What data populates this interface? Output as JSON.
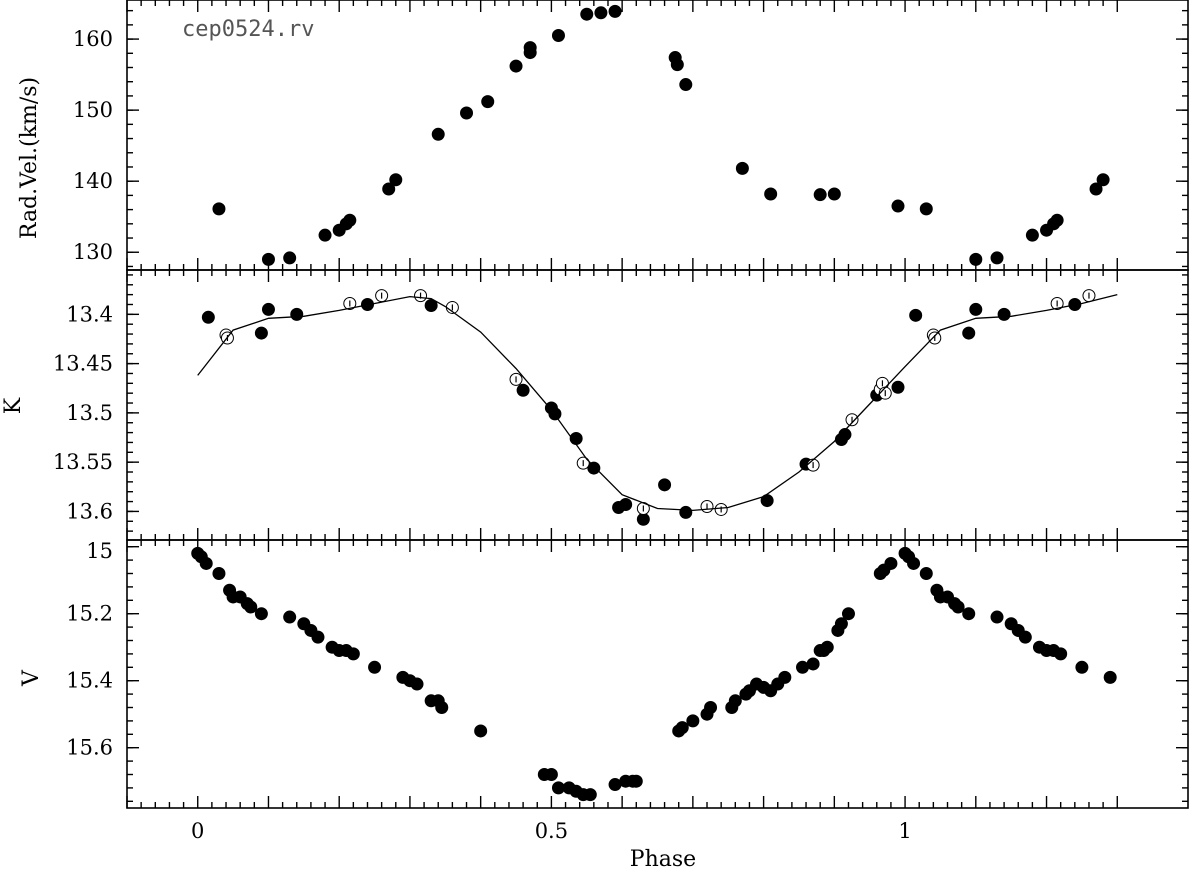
{
  "chart_data": [
    {
      "type": "scatter",
      "panel": "top",
      "annotation": "cep0524.rv",
      "ylabel": "Rad.Vel.(km/s)",
      "xlim": [
        -0.1,
        1.4
      ],
      "ylim": [
        127.5,
        165.5
      ],
      "yticks": [
        130,
        140,
        150,
        160
      ],
      "series": [
        {
          "style": "filled",
          "points": [
            [
              0.03,
              136.1
            ],
            [
              0.1,
              129.0
            ],
            [
              0.13,
              129.2
            ],
            [
              0.18,
              132.4
            ],
            [
              0.2,
              133.1
            ],
            [
              0.21,
              134.0
            ],
            [
              0.215,
              134.5
            ],
            [
              0.27,
              138.9
            ],
            [
              0.28,
              140.2
            ],
            [
              0.34,
              146.6
            ],
            [
              0.38,
              149.6
            ],
            [
              0.41,
              151.2
            ],
            [
              0.45,
              156.2
            ],
            [
              0.47,
              158.1
            ],
            [
              0.47,
              158.8
            ],
            [
              0.51,
              160.5
            ],
            [
              0.55,
              163.5
            ],
            [
              0.57,
              163.7
            ],
            [
              0.59,
              163.9
            ],
            [
              0.675,
              157.4
            ],
            [
              0.678,
              156.4
            ],
            [
              0.69,
              153.6
            ],
            [
              0.77,
              141.8
            ],
            [
              0.81,
              138.2
            ],
            [
              0.88,
              138.1
            ],
            [
              0.9,
              138.2
            ],
            [
              0.99,
              136.5
            ],
            [
              1.03,
              136.1
            ],
            [
              1.1,
              129.0
            ],
            [
              1.13,
              129.2
            ],
            [
              1.18,
              132.4
            ],
            [
              1.2,
              133.1
            ],
            [
              1.21,
              134.0
            ],
            [
              1.215,
              134.5
            ],
            [
              1.27,
              138.9
            ],
            [
              1.28,
              140.2
            ]
          ]
        }
      ]
    },
    {
      "type": "scatter",
      "panel": "middle",
      "ylabel": "K",
      "y_inverted": true,
      "xlim": [
        -0.1,
        1.4
      ],
      "ylim": [
        13.629,
        13.355
      ],
      "yticks": [
        13.4,
        13.45,
        13.5,
        13.55,
        13.6
      ],
      "ytick_labels": [
        "13.4",
        "13.45",
        "13.5",
        "13.55",
        "13.6"
      ],
      "series": [
        {
          "style": "filled",
          "points": [
            [
              0.015,
              13.403
            ],
            [
              0.09,
              13.419
            ],
            [
              0.1,
              13.395
            ],
            [
              0.14,
              13.4
            ],
            [
              0.24,
              13.39
            ],
            [
              0.33,
              13.391
            ],
            [
              0.46,
              13.477
            ],
            [
              0.5,
              13.495
            ],
            [
              0.505,
              13.501
            ],
            [
              0.535,
              13.526
            ],
            [
              0.56,
              13.556
            ],
            [
              0.595,
              13.596
            ],
            [
              0.605,
              13.593
            ],
            [
              0.63,
              13.608
            ],
            [
              0.66,
              13.573
            ],
            [
              0.69,
              13.601
            ],
            [
              0.805,
              13.589
            ],
            [
              0.86,
              13.552
            ],
            [
              0.91,
              13.527
            ],
            [
              0.915,
              13.522
            ],
            [
              0.96,
              13.482
            ],
            [
              0.99,
              13.474
            ],
            [
              1.015,
              13.401
            ],
            [
              1.09,
              13.419
            ],
            [
              1.1,
              13.395
            ],
            [
              1.14,
              13.4
            ],
            [
              1.24,
              13.39
            ]
          ]
        },
        {
          "style": "open",
          "points": [
            [
              0.04,
              13.421
            ],
            [
              0.042,
              13.424
            ],
            [
              0.215,
              13.389
            ],
            [
              0.26,
              13.381
            ],
            [
              0.315,
              13.381
            ],
            [
              0.36,
              13.393
            ],
            [
              0.45,
              13.466
            ],
            [
              0.545,
              13.551
            ],
            [
              0.63,
              13.597
            ],
            [
              0.72,
              13.595
            ],
            [
              0.74,
              13.598
            ],
            [
              0.87,
              13.553
            ],
            [
              0.925,
              13.507
            ],
            [
              0.965,
              13.476
            ],
            [
              0.968,
              13.47
            ],
            [
              0.972,
              13.48
            ],
            [
              1.04,
              13.421
            ],
            [
              1.042,
              13.424
            ],
            [
              1.215,
              13.389
            ],
            [
              1.26,
              13.381
            ]
          ]
        },
        {
          "style": "fit-curve",
          "points": [
            [
              0.0,
              13.462
            ],
            [
              0.05,
              13.416
            ],
            [
              0.1,
              13.404
            ],
            [
              0.15,
              13.402
            ],
            [
              0.2,
              13.396
            ],
            [
              0.25,
              13.389
            ],
            [
              0.3,
              13.382
            ],
            [
              0.33,
              13.384
            ],
            [
              0.35,
              13.392
            ],
            [
              0.4,
              13.418
            ],
            [
              0.45,
              13.455
            ],
            [
              0.5,
              13.497
            ],
            [
              0.55,
              13.547
            ],
            [
              0.6,
              13.583
            ],
            [
              0.65,
              13.597
            ],
            [
              0.7,
              13.599
            ],
            [
              0.75,
              13.596
            ],
            [
              0.8,
              13.585
            ],
            [
              0.85,
              13.56
            ],
            [
              0.9,
              13.529
            ],
            [
              0.95,
              13.491
            ],
            [
              1.0,
              13.453
            ],
            [
              1.05,
              13.416
            ],
            [
              1.1,
              13.404
            ],
            [
              1.15,
              13.402
            ],
            [
              1.2,
              13.396
            ],
            [
              1.25,
              13.389
            ],
            [
              1.3,
              13.38
            ]
          ]
        }
      ]
    },
    {
      "type": "scatter",
      "panel": "bottom",
      "ylabel": "V",
      "xlabel": "Phase",
      "y_inverted": true,
      "xlim": [
        -0.1,
        1.4
      ],
      "ylim": [
        15.78,
        14.98
      ],
      "yticks": [
        15.0,
        15.2,
        15.4,
        15.6
      ],
      "ytick_labels": [
        "15",
        "15.2",
        "15.4",
        "15.6"
      ],
      "xticks": [
        0,
        0.5,
        1
      ],
      "xtick_labels": [
        "0",
        "0.5",
        "1"
      ],
      "series": [
        {
          "style": "filled",
          "points": [
            [
              0.0,
              15.02
            ],
            [
              0.005,
              15.03
            ],
            [
              0.012,
              15.05
            ],
            [
              0.03,
              15.08
            ],
            [
              0.045,
              15.13
            ],
            [
              0.05,
              15.15
            ],
            [
              0.06,
              15.15
            ],
            [
              0.07,
              15.17
            ],
            [
              0.075,
              15.18
            ],
            [
              0.09,
              15.2
            ],
            [
              0.13,
              15.21
            ],
            [
              0.15,
              15.23
            ],
            [
              0.16,
              15.25
            ],
            [
              0.17,
              15.27
            ],
            [
              0.19,
              15.3
            ],
            [
              0.2,
              15.31
            ],
            [
              0.21,
              15.31
            ],
            [
              0.22,
              15.32
            ],
            [
              0.25,
              15.36
            ],
            [
              0.29,
              15.39
            ],
            [
              0.3,
              15.4
            ],
            [
              0.31,
              15.41
            ],
            [
              0.33,
              15.46
            ],
            [
              0.34,
              15.46
            ],
            [
              0.345,
              15.48
            ],
            [
              0.4,
              15.55
            ],
            [
              0.49,
              15.68
            ],
            [
              0.5,
              15.68
            ],
            [
              0.51,
              15.72
            ],
            [
              0.525,
              15.72
            ],
            [
              0.535,
              15.73
            ],
            [
              0.545,
              15.74
            ],
            [
              0.555,
              15.74
            ],
            [
              0.59,
              15.71
            ],
            [
              0.605,
              15.7
            ],
            [
              0.615,
              15.7
            ],
            [
              0.62,
              15.7
            ],
            [
              0.68,
              15.55
            ],
            [
              0.685,
              15.54
            ],
            [
              0.7,
              15.52
            ],
            [
              0.72,
              15.5
            ],
            [
              0.725,
              15.48
            ],
            [
              0.755,
              15.48
            ],
            [
              0.76,
              15.46
            ],
            [
              0.775,
              15.44
            ],
            [
              0.78,
              15.43
            ],
            [
              0.79,
              15.41
            ],
            [
              0.8,
              15.42
            ],
            [
              0.81,
              15.43
            ],
            [
              0.82,
              15.41
            ],
            [
              0.83,
              15.39
            ],
            [
              0.855,
              15.36
            ],
            [
              0.87,
              15.35
            ],
            [
              0.88,
              15.31
            ],
            [
              0.885,
              15.31
            ],
            [
              0.89,
              15.3
            ],
            [
              0.905,
              15.25
            ],
            [
              0.91,
              15.23
            ],
            [
              0.92,
              15.2
            ],
            [
              0.965,
              15.08
            ],
            [
              0.97,
              15.07
            ],
            [
              0.98,
              15.05
            ],
            [
              1.0,
              15.02
            ],
            [
              1.005,
              15.03
            ],
            [
              1.012,
              15.05
            ],
            [
              1.03,
              15.08
            ],
            [
              1.045,
              15.13
            ],
            [
              1.05,
              15.15
            ],
            [
              1.06,
              15.15
            ],
            [
              1.07,
              15.17
            ],
            [
              1.075,
              15.18
            ],
            [
              1.09,
              15.2
            ],
            [
              1.13,
              15.21
            ],
            [
              1.15,
              15.23
            ],
            [
              1.16,
              15.25
            ],
            [
              1.17,
              15.27
            ],
            [
              1.19,
              15.3
            ],
            [
              1.2,
              15.31
            ],
            [
              1.21,
              15.31
            ],
            [
              1.22,
              15.32
            ],
            [
              1.25,
              15.36
            ],
            [
              1.29,
              15.39
            ]
          ]
        }
      ]
    }
  ]
}
